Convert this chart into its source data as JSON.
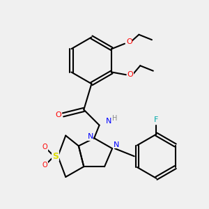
{
  "background_color": "#f0f0f0",
  "atom_colors": {
    "O": "#ff0000",
    "N": "#0000ff",
    "S": "#dddd00",
    "F": "#00aaaa",
    "C": "#000000",
    "H": "#555555"
  },
  "title": "",
  "figsize": [
    3.0,
    3.0
  ],
  "dpi": 100
}
